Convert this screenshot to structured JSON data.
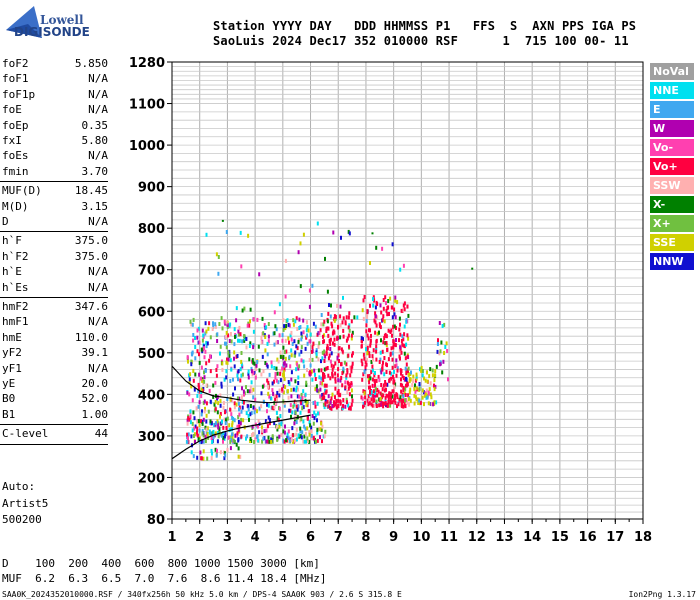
{
  "logo": {
    "top": "Lowell",
    "bottom": "DIGISONDE"
  },
  "header": {
    "line1": "Station YYYY DAY   DDD HHMMSS P1   FFS  S  AXN PPS IGA PS",
    "line2": "SaoLuis 2024 Dec17 352 010000 RSF      1  715 100 00- 11"
  },
  "params": [
    {
      "name": "foF2",
      "value": "5.850"
    },
    {
      "name": "foF1",
      "value": "N/A"
    },
    {
      "name": "foF1p",
      "value": "N/A"
    },
    {
      "name": "foE",
      "value": "N/A"
    },
    {
      "name": "foEp",
      "value": "0.35"
    },
    {
      "name": "fxI",
      "value": "5.80"
    },
    {
      "name": "foEs",
      "value": "N/A"
    },
    {
      "name": "fmin",
      "value": "3.70"
    },
    {
      "name": "MUF(D)",
      "value": "18.45"
    },
    {
      "name": "M(D)",
      "value": "3.15"
    },
    {
      "name": "D",
      "value": "N/A"
    },
    {
      "name": "h`F",
      "value": "375.0"
    },
    {
      "name": "h`F2",
      "value": "375.0"
    },
    {
      "name": "h`E",
      "value": "N/A"
    },
    {
      "name": "h`Es",
      "value": "N/A"
    },
    {
      "name": "hmF2",
      "value": "347.6"
    },
    {
      "name": "hmF1",
      "value": "N/A"
    },
    {
      "name": "hmE",
      "value": "110.0"
    },
    {
      "name": "yF2",
      "value": "39.1"
    },
    {
      "name": "yF1",
      "value": "N/A"
    },
    {
      "name": "yE",
      "value": "20.0"
    },
    {
      "name": "B0",
      "value": "52.0"
    },
    {
      "name": "B1",
      "value": "1.00"
    },
    {
      "name": "C-level",
      "value": "44"
    }
  ],
  "auto": [
    "Auto:",
    "Artist5",
    "500200"
  ],
  "legend": [
    {
      "label": "NoVal",
      "color": "#a0a0a0"
    },
    {
      "label": "NNE",
      "color": "#00e0f0"
    },
    {
      "label": "E",
      "color": "#40a8f0"
    },
    {
      "label": "W",
      "color": "#b000b0"
    },
    {
      "label": "Vo-",
      "color": "#ff40b0"
    },
    {
      "label": "Vo+",
      "color": "#ff0040"
    },
    {
      "label": "SSW",
      "color": "#ffb0b0"
    },
    {
      "label": "X-",
      "color": "#008000"
    },
    {
      "label": "X+",
      "color": "#70c040"
    },
    {
      "label": "SSE",
      "color": "#d0d000"
    },
    {
      "label": "NNW",
      "color": "#1010d0"
    }
  ],
  "bottom": {
    "d_line": "D    100  200  400  600  800 1000 1500 3000 [km]",
    "muf_line": "MUF  6.2  6.3  6.5  7.0  7.6  8.6 11.4 18.4 [MHz]",
    "footer_left": "SAA0K_2024352010000.RSF / 340fx256h 50 kHz 5.0 km / DPS-4 SAA0K 903 / 2.6 S 315.8 E",
    "footer_right": "Ion2Png 1.3.17"
  },
  "chart_data": {
    "type": "scatter",
    "title": "",
    "xlabel": "",
    "ylabel": "",
    "xlim": [
      1,
      18
    ],
    "ylim": [
      80,
      1280
    ],
    "x_ticks": [
      "1",
      "2",
      "3",
      "4",
      "5",
      "6",
      "7",
      "8",
      "9",
      "10",
      "11",
      "12",
      "13",
      "14",
      "15",
      "16",
      "17",
      "18"
    ],
    "y_ticks": [
      "80",
      "200",
      "300",
      "400",
      "500",
      "600",
      "700",
      "800",
      "900",
      "1000",
      "1100",
      "1280"
    ],
    "y_tick_values": [
      80,
      200,
      300,
      400,
      500,
      600,
      700,
      800,
      900,
      1000,
      1100,
      1280
    ],
    "trace_curve": [
      [
        1.0,
        245
      ],
      [
        1.5,
        268
      ],
      [
        2.0,
        288
      ],
      [
        2.5,
        302
      ],
      [
        3.0,
        312
      ],
      [
        3.5,
        320
      ],
      [
        4.0,
        326
      ],
      [
        4.5,
        332
      ],
      [
        5.0,
        338
      ],
      [
        5.5,
        344
      ],
      [
        6.0,
        350
      ]
    ],
    "trace_curve2": [
      [
        1.0,
        468
      ],
      [
        1.5,
        432
      ],
      [
        2.0,
        408
      ],
      [
        2.5,
        396
      ],
      [
        3.0,
        392
      ],
      [
        3.5,
        386
      ],
      [
        4.0,
        382
      ],
      [
        4.5,
        380
      ],
      [
        5.0,
        382
      ],
      [
        5.5,
        384
      ],
      [
        6.0,
        386
      ]
    ],
    "echo_regions": [
      {
        "x_range": [
          1.5,
          6.5
        ],
        "h_range": [
          290,
          590
        ],
        "count": 900
      },
      {
        "x_range": [
          6.4,
          7.5
        ],
        "h_range": [
          370,
          600
        ],
        "count": 200
      },
      {
        "x_range": [
          7.8,
          9.5
        ],
        "h_range": [
          375,
          640
        ],
        "count": 380
      },
      {
        "x_range": [
          9.5,
          10.5
        ],
        "h_range": [
          380,
          470
        ],
        "count": 90
      },
      {
        "x_range": [
          10.5,
          11.0
        ],
        "h_range": [
          440,
          580
        ],
        "count": 20
      },
      {
        "x_range": [
          1.6,
          3.5
        ],
        "h_range": [
          250,
          340
        ],
        "count": 60
      },
      {
        "x_range": [
          2.0,
          9.8
        ],
        "h_range": [
          590,
          820
        ],
        "count": 50
      }
    ]
  }
}
